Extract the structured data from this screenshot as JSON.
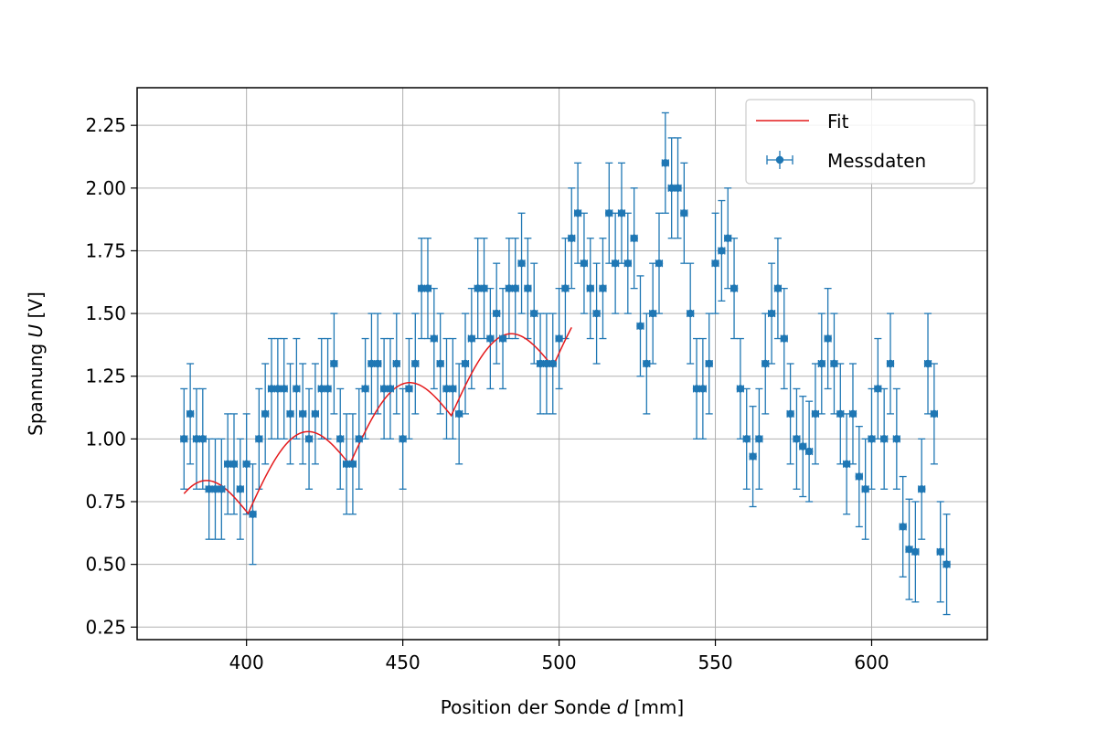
{
  "chart_data": {
    "type": "scatter",
    "xlabel_parts": [
      "Position der Sonde ",
      "d",
      " [mm]"
    ],
    "ylabel_parts": [
      "Spannung ",
      "U",
      " [V]"
    ],
    "xlim": [
      365,
      637
    ],
    "ylim": [
      0.2,
      2.4
    ],
    "x_ticks": [
      400,
      450,
      500,
      550,
      600
    ],
    "y_ticks": [
      0.25,
      0.5,
      0.75,
      1.0,
      1.25,
      1.5,
      1.75,
      2.0,
      2.25
    ],
    "grid": true,
    "legend_position": "top-right",
    "series": [
      {
        "name": "Messdaten",
        "color": "#1f77b4",
        "x_error": 1,
        "y_error": 0.2,
        "x": [
          380,
          382,
          384,
          386,
          388,
          390,
          392,
          394,
          396,
          398,
          400,
          402,
          404,
          406,
          408,
          410,
          412,
          414,
          416,
          418,
          420,
          422,
          424,
          426,
          428,
          430,
          432,
          434,
          436,
          438,
          440,
          442,
          444,
          446,
          448,
          450,
          452,
          454,
          456,
          458,
          460,
          462,
          464,
          466,
          468,
          470,
          472,
          474,
          476,
          478,
          480,
          482,
          484,
          486,
          488,
          490,
          492,
          494,
          496,
          498,
          500,
          502,
          504,
          506,
          508,
          510,
          512,
          514,
          516,
          518,
          520,
          522,
          524,
          526,
          528,
          530,
          532,
          534,
          536,
          538,
          540,
          542,
          544,
          546,
          548,
          550,
          552,
          554,
          556,
          558,
          560,
          562,
          564,
          566,
          568,
          570,
          572,
          574,
          576,
          578,
          580,
          582,
          584,
          586,
          588,
          590,
          592,
          594,
          596,
          598,
          600,
          602,
          604,
          606,
          608,
          610,
          612,
          614,
          616,
          618,
          620,
          622,
          624
        ],
        "y": [
          1.0,
          1.1,
          1.0,
          1.0,
          0.8,
          0.8,
          0.8,
          0.9,
          0.9,
          0.8,
          0.9,
          0.7,
          1.0,
          1.1,
          1.2,
          1.2,
          1.2,
          1.1,
          1.2,
          1.1,
          1.0,
          1.1,
          1.2,
          1.2,
          1.3,
          1.0,
          0.9,
          0.9,
          1.0,
          1.2,
          1.3,
          1.3,
          1.2,
          1.2,
          1.3,
          1.0,
          1.2,
          1.3,
          1.6,
          1.6,
          1.4,
          1.3,
          1.2,
          1.2,
          1.1,
          1.3,
          1.4,
          1.6,
          1.6,
          1.4,
          1.5,
          1.4,
          1.6,
          1.6,
          1.7,
          1.6,
          1.5,
          1.3,
          1.3,
          1.3,
          1.4,
          1.6,
          1.8,
          1.9,
          1.7,
          1.6,
          1.5,
          1.6,
          1.9,
          1.7,
          1.9,
          1.7,
          1.8,
          1.45,
          1.3,
          1.5,
          1.7,
          2.1,
          2.0,
          2.0,
          1.9,
          1.5,
          1.2,
          1.2,
          1.3,
          1.7,
          1.75,
          1.8,
          1.6,
          1.2,
          1.0,
          0.93,
          1.0,
          1.3,
          1.5,
          1.6,
          1.4,
          1.1,
          1.0,
          0.97,
          0.95,
          1.1,
          1.3,
          1.4,
          1.3,
          1.1,
          0.9,
          1.1,
          0.85,
          0.8,
          1.0,
          1.2,
          1.0,
          1.3,
          1.0,
          0.65,
          0.56,
          0.55,
          0.8,
          1.3,
          1.1,
          0.55,
          0.5
        ]
      },
      {
        "name": "Fit",
        "color": "#e41a1c",
        "type": "line",
        "x_range": [
          380,
          504
        ]
      }
    ]
  }
}
